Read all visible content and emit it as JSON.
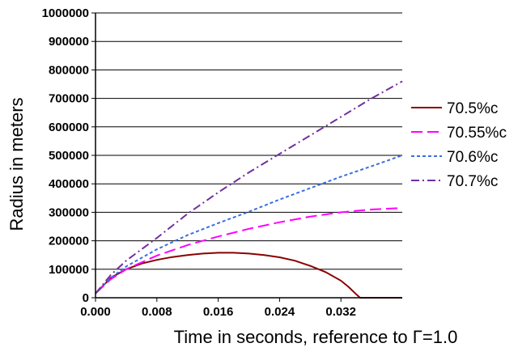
{
  "chart_data": {
    "type": "line",
    "title": "",
    "xlabel": "Time in seconds, reference to Γ=1.0",
    "ylabel": "Radius in meters",
    "xlim": [
      0,
      0.04
    ],
    "ylim": [
      0,
      1000000
    ],
    "x_ticks": [
      "0.000",
      "0.008",
      "0.016",
      "0.024",
      "0.032"
    ],
    "y_ticks": [
      "0",
      "100000",
      "200000",
      "300000",
      "400000",
      "500000",
      "600000",
      "700000",
      "800000",
      "900000",
      "1000000"
    ],
    "grid": "horizontal",
    "legend_position": "right",
    "series": [
      {
        "name": "70.5%c",
        "color": "#8b0000",
        "dash": "solid",
        "x": [
          0,
          0.002,
          0.004,
          0.006,
          0.008,
          0.01,
          0.012,
          0.014,
          0.016,
          0.018,
          0.02,
          0.022,
          0.024,
          0.026,
          0.028,
          0.03,
          0.032,
          0.033,
          0.034,
          0.0345,
          0.036,
          0.038,
          0.04
        ],
        "y": [
          15000,
          70000,
          100000,
          120000,
          133000,
          143000,
          150000,
          155000,
          158000,
          158000,
          155000,
          150000,
          142000,
          130000,
          112000,
          90000,
          60000,
          38000,
          12000,
          0,
          0,
          0,
          0
        ]
      },
      {
        "name": "70.55%c",
        "color": "#ff00ff",
        "dash": "long-dash",
        "x": [
          0,
          0.002,
          0.004,
          0.008,
          0.012,
          0.016,
          0.02,
          0.024,
          0.028,
          0.032,
          0.036,
          0.04
        ],
        "y": [
          15000,
          65000,
          100000,
          148000,
          185000,
          215000,
          242000,
          265000,
          285000,
          300000,
          310000,
          315000
        ]
      },
      {
        "name": "70.6%c",
        "color": "#3a6fe0",
        "dash": "short-dash",
        "x": [
          0,
          0.002,
          0.004,
          0.008,
          0.012,
          0.016,
          0.02,
          0.024,
          0.028,
          0.032,
          0.036,
          0.04
        ],
        "y": [
          15000,
          70000,
          110000,
          170000,
          220000,
          262000,
          302000,
          345000,
          385000,
          425000,
          462000,
          500000
        ]
      },
      {
        "name": "70.7%c",
        "color": "#7030a0",
        "dash": "dash-dot",
        "x": [
          0,
          0.002,
          0.004,
          0.008,
          0.012,
          0.016,
          0.02,
          0.024,
          0.028,
          0.032,
          0.036,
          0.04
        ],
        "y": [
          15000,
          80000,
          130000,
          210000,
          295000,
          370000,
          440000,
          505000,
          570000,
          635000,
          700000,
          760000
        ]
      }
    ]
  }
}
